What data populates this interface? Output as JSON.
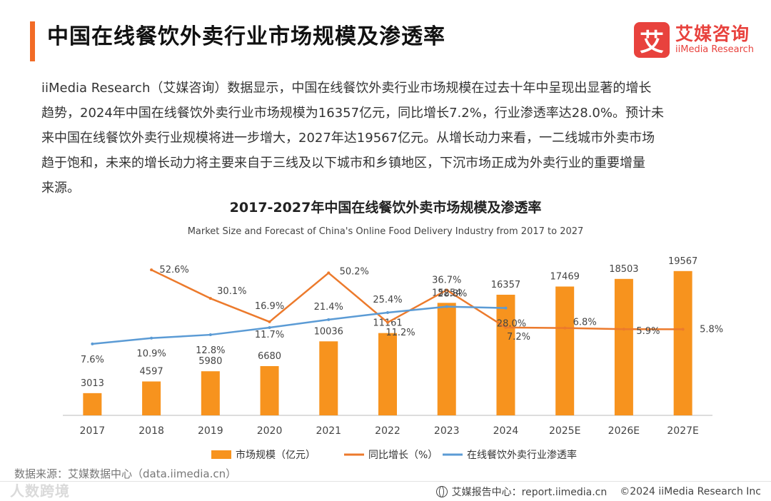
{
  "header": {
    "title": "中国在线餐饮外卖行业市场规模及渗透率",
    "logo_mark": "艾",
    "logo_cn": "艾媒咨询",
    "logo_en": "iiMedia Research"
  },
  "intro_lines": [
    "iiMedia Research（艾媒咨询）数据显示，中国在线餐饮外卖行业市场规模在过去十年中呈现出显著的增长",
    "趋势，2024年中国在线餐饮外卖行业市场规模为16357亿元，同比增长7.2%，行业渗透率达28.0%。预计未",
    "来中国在线餐饮外卖行业规模将进一步增大，2027年达19567亿元。从增长动力来看，一二线城市外卖市场",
    "趋于饱和，未来的增长动力将主要来自于三线及以下城市和乡镇地区，下沉市场正成为外卖行业的重要增量",
    "来源。"
  ],
  "chart_data": {
    "type": "bar",
    "title": "2017-2027年中国在线餐饮外卖市场规模及渗透率",
    "subtitle": "Market Size and Forecast of China's Online Food Delivery Industry from 2017 to 2027",
    "categories": [
      "2017",
      "2018",
      "2019",
      "2020",
      "2021",
      "2022",
      "2023",
      "2024",
      "2025E",
      "2026E",
      "2027E"
    ],
    "series": [
      {
        "name": "市场规模（亿元）",
        "type": "bar",
        "color": "#f7931e",
        "values": [
          3013,
          4597,
          5980,
          6680,
          10036,
          11161,
          15254,
          16357,
          17469,
          18503,
          19567
        ]
      },
      {
        "name": "同比增长（%）",
        "type": "line",
        "color": "#ec7a2c",
        "values": [
          null,
          52.6,
          30.1,
          11.7,
          50.2,
          11.2,
          36.7,
          7.2,
          6.8,
          5.9,
          5.8
        ]
      },
      {
        "name": "在线餐饮外卖行业渗透率",
        "type": "line",
        "color": "#5b9bd5",
        "values": [
          7.6,
          10.9,
          12.8,
          16.9,
          21.4,
          25.4,
          28.8,
          28.0,
          null,
          null,
          null
        ]
      }
    ],
    "bar_ylim": [
      0,
      21000
    ],
    "growth_ylim": [
      -62,
      60
    ],
    "penetration_ylim": [
      -33,
      55
    ],
    "legend_position": "bottom"
  },
  "footer": {
    "source": "数据来源：艾媒数据中心（data.iimedia.cn）",
    "report": "艾媒报告中心：report.iimedia.cn",
    "copyright": "©2024  iiMedia Research  Inc",
    "watermark": "人数跨境"
  }
}
